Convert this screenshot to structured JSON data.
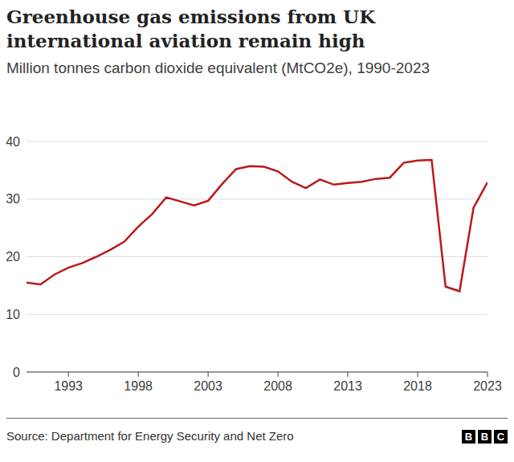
{
  "chart_data": {
    "type": "line",
    "title": "Greenhouse gas emissions from UK international aviation remain high",
    "subtitle": "Million tonnes carbon dioxide equivalent (MtCO2e), 1990-2023",
    "source": "Source: Department for Energy Security and Net Zero",
    "logo": "BBC",
    "x": [
      1990,
      1991,
      1992,
      1993,
      1994,
      1995,
      1996,
      1997,
      1998,
      1999,
      2000,
      2001,
      2002,
      2003,
      2004,
      2005,
      2006,
      2007,
      2008,
      2009,
      2010,
      2011,
      2012,
      2013,
      2014,
      2015,
      2016,
      2017,
      2018,
      2019,
      2020,
      2021,
      2022,
      2023
    ],
    "values": [
      15.5,
      15.2,
      16.9,
      18.1,
      18.9,
      20.0,
      21.2,
      22.6,
      25.2,
      27.4,
      30.3,
      29.6,
      28.9,
      29.7,
      32.6,
      35.2,
      35.7,
      35.6,
      34.8,
      33.0,
      31.9,
      33.4,
      32.5,
      32.8,
      33.0,
      33.5,
      33.7,
      36.3,
      36.7,
      36.8,
      14.8,
      14.0,
      28.5,
      32.9
    ],
    "color": "#bb1919",
    "xlim": [
      1990,
      2023
    ],
    "xticks": [
      1993,
      1998,
      2003,
      2008,
      2013,
      2018,
      2023
    ],
    "ylim": [
      0,
      40
    ],
    "yticks": [
      0,
      10,
      20,
      30,
      40
    ],
    "grid": true
  }
}
